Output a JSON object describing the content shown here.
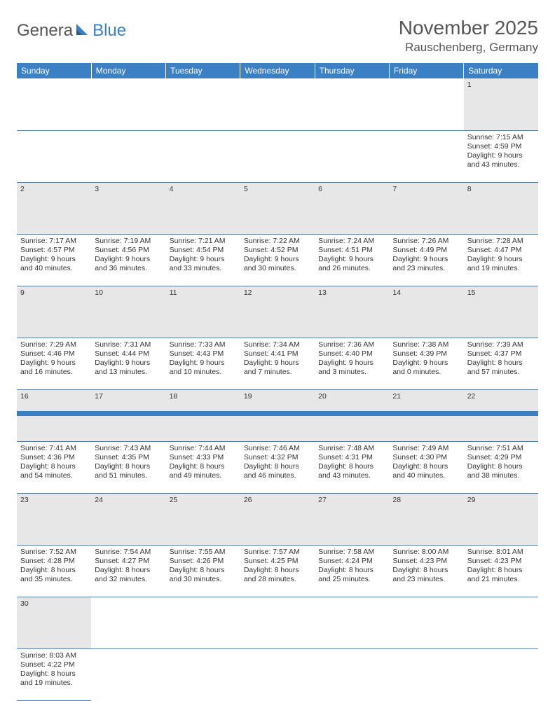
{
  "logo": {
    "part1": "Genera",
    "part2": "Blue"
  },
  "title": "November 2025",
  "location": "Rauschenberg, Germany",
  "colors": {
    "accent": "#3b7fc4",
    "header_text": "#ffffff",
    "gray_row": "#e7e7e7",
    "text": "#333333"
  },
  "weekdays": [
    "Sunday",
    "Monday",
    "Tuesday",
    "Wednesday",
    "Thursday",
    "Friday",
    "Saturday"
  ],
  "weeks": [
    [
      null,
      null,
      null,
      null,
      null,
      null,
      {
        "d": "1",
        "sr": "Sunrise: 7:15 AM",
        "ss": "Sunset: 4:59 PM",
        "dl1": "Daylight: 9 hours",
        "dl2": "and 43 minutes."
      }
    ],
    [
      {
        "d": "2",
        "sr": "Sunrise: 7:17 AM",
        "ss": "Sunset: 4:57 PM",
        "dl1": "Daylight: 9 hours",
        "dl2": "and 40 minutes."
      },
      {
        "d": "3",
        "sr": "Sunrise: 7:19 AM",
        "ss": "Sunset: 4:56 PM",
        "dl1": "Daylight: 9 hours",
        "dl2": "and 36 minutes."
      },
      {
        "d": "4",
        "sr": "Sunrise: 7:21 AM",
        "ss": "Sunset: 4:54 PM",
        "dl1": "Daylight: 9 hours",
        "dl2": "and 33 minutes."
      },
      {
        "d": "5",
        "sr": "Sunrise: 7:22 AM",
        "ss": "Sunset: 4:52 PM",
        "dl1": "Daylight: 9 hours",
        "dl2": "and 30 minutes."
      },
      {
        "d": "6",
        "sr": "Sunrise: 7:24 AM",
        "ss": "Sunset: 4:51 PM",
        "dl1": "Daylight: 9 hours",
        "dl2": "and 26 minutes."
      },
      {
        "d": "7",
        "sr": "Sunrise: 7:26 AM",
        "ss": "Sunset: 4:49 PM",
        "dl1": "Daylight: 9 hours",
        "dl2": "and 23 minutes."
      },
      {
        "d": "8",
        "sr": "Sunrise: 7:28 AM",
        "ss": "Sunset: 4:47 PM",
        "dl1": "Daylight: 9 hours",
        "dl2": "and 19 minutes."
      }
    ],
    [
      {
        "d": "9",
        "sr": "Sunrise: 7:29 AM",
        "ss": "Sunset: 4:46 PM",
        "dl1": "Daylight: 9 hours",
        "dl2": "and 16 minutes."
      },
      {
        "d": "10",
        "sr": "Sunrise: 7:31 AM",
        "ss": "Sunset: 4:44 PM",
        "dl1": "Daylight: 9 hours",
        "dl2": "and 13 minutes."
      },
      {
        "d": "11",
        "sr": "Sunrise: 7:33 AM",
        "ss": "Sunset: 4:43 PM",
        "dl1": "Daylight: 9 hours",
        "dl2": "and 10 minutes."
      },
      {
        "d": "12",
        "sr": "Sunrise: 7:34 AM",
        "ss": "Sunset: 4:41 PM",
        "dl1": "Daylight: 9 hours",
        "dl2": "and 7 minutes."
      },
      {
        "d": "13",
        "sr": "Sunrise: 7:36 AM",
        "ss": "Sunset: 4:40 PM",
        "dl1": "Daylight: 9 hours",
        "dl2": "and 3 minutes."
      },
      {
        "d": "14",
        "sr": "Sunrise: 7:38 AM",
        "ss": "Sunset: 4:39 PM",
        "dl1": "Daylight: 9 hours",
        "dl2": "and 0 minutes."
      },
      {
        "d": "15",
        "sr": "Sunrise: 7:39 AM",
        "ss": "Sunset: 4:37 PM",
        "dl1": "Daylight: 8 hours",
        "dl2": "and 57 minutes."
      }
    ],
    [
      {
        "d": "16",
        "sr": "Sunrise: 7:41 AM",
        "ss": "Sunset: 4:36 PM",
        "dl1": "Daylight: 8 hours",
        "dl2": "and 54 minutes."
      },
      {
        "d": "17",
        "sr": "Sunrise: 7:43 AM",
        "ss": "Sunset: 4:35 PM",
        "dl1": "Daylight: 8 hours",
        "dl2": "and 51 minutes."
      },
      {
        "d": "18",
        "sr": "Sunrise: 7:44 AM",
        "ss": "Sunset: 4:33 PM",
        "dl1": "Daylight: 8 hours",
        "dl2": "and 49 minutes."
      },
      {
        "d": "19",
        "sr": "Sunrise: 7:46 AM",
        "ss": "Sunset: 4:32 PM",
        "dl1": "Daylight: 8 hours",
        "dl2": "and 46 minutes."
      },
      {
        "d": "20",
        "sr": "Sunrise: 7:48 AM",
        "ss": "Sunset: 4:31 PM",
        "dl1": "Daylight: 8 hours",
        "dl2": "and 43 minutes."
      },
      {
        "d": "21",
        "sr": "Sunrise: 7:49 AM",
        "ss": "Sunset: 4:30 PM",
        "dl1": "Daylight: 8 hours",
        "dl2": "and 40 minutes."
      },
      {
        "d": "22",
        "sr": "Sunrise: 7:51 AM",
        "ss": "Sunset: 4:29 PM",
        "dl1": "Daylight: 8 hours",
        "dl2": "and 38 minutes."
      }
    ],
    [
      {
        "d": "23",
        "sr": "Sunrise: 7:52 AM",
        "ss": "Sunset: 4:28 PM",
        "dl1": "Daylight: 8 hours",
        "dl2": "and 35 minutes."
      },
      {
        "d": "24",
        "sr": "Sunrise: 7:54 AM",
        "ss": "Sunset: 4:27 PM",
        "dl1": "Daylight: 8 hours",
        "dl2": "and 32 minutes."
      },
      {
        "d": "25",
        "sr": "Sunrise: 7:55 AM",
        "ss": "Sunset: 4:26 PM",
        "dl1": "Daylight: 8 hours",
        "dl2": "and 30 minutes."
      },
      {
        "d": "26",
        "sr": "Sunrise: 7:57 AM",
        "ss": "Sunset: 4:25 PM",
        "dl1": "Daylight: 8 hours",
        "dl2": "and 28 minutes."
      },
      {
        "d": "27",
        "sr": "Sunrise: 7:58 AM",
        "ss": "Sunset: 4:24 PM",
        "dl1": "Daylight: 8 hours",
        "dl2": "and 25 minutes."
      },
      {
        "d": "28",
        "sr": "Sunrise: 8:00 AM",
        "ss": "Sunset: 4:23 PM",
        "dl1": "Daylight: 8 hours",
        "dl2": "and 23 minutes."
      },
      {
        "d": "29",
        "sr": "Sunrise: 8:01 AM",
        "ss": "Sunset: 4:23 PM",
        "dl1": "Daylight: 8 hours",
        "dl2": "and 21 minutes."
      }
    ],
    [
      {
        "d": "30",
        "sr": "Sunrise: 8:03 AM",
        "ss": "Sunset: 4:22 PM",
        "dl1": "Daylight: 8 hours",
        "dl2": "and 19 minutes."
      },
      null,
      null,
      null,
      null,
      null,
      null
    ]
  ]
}
